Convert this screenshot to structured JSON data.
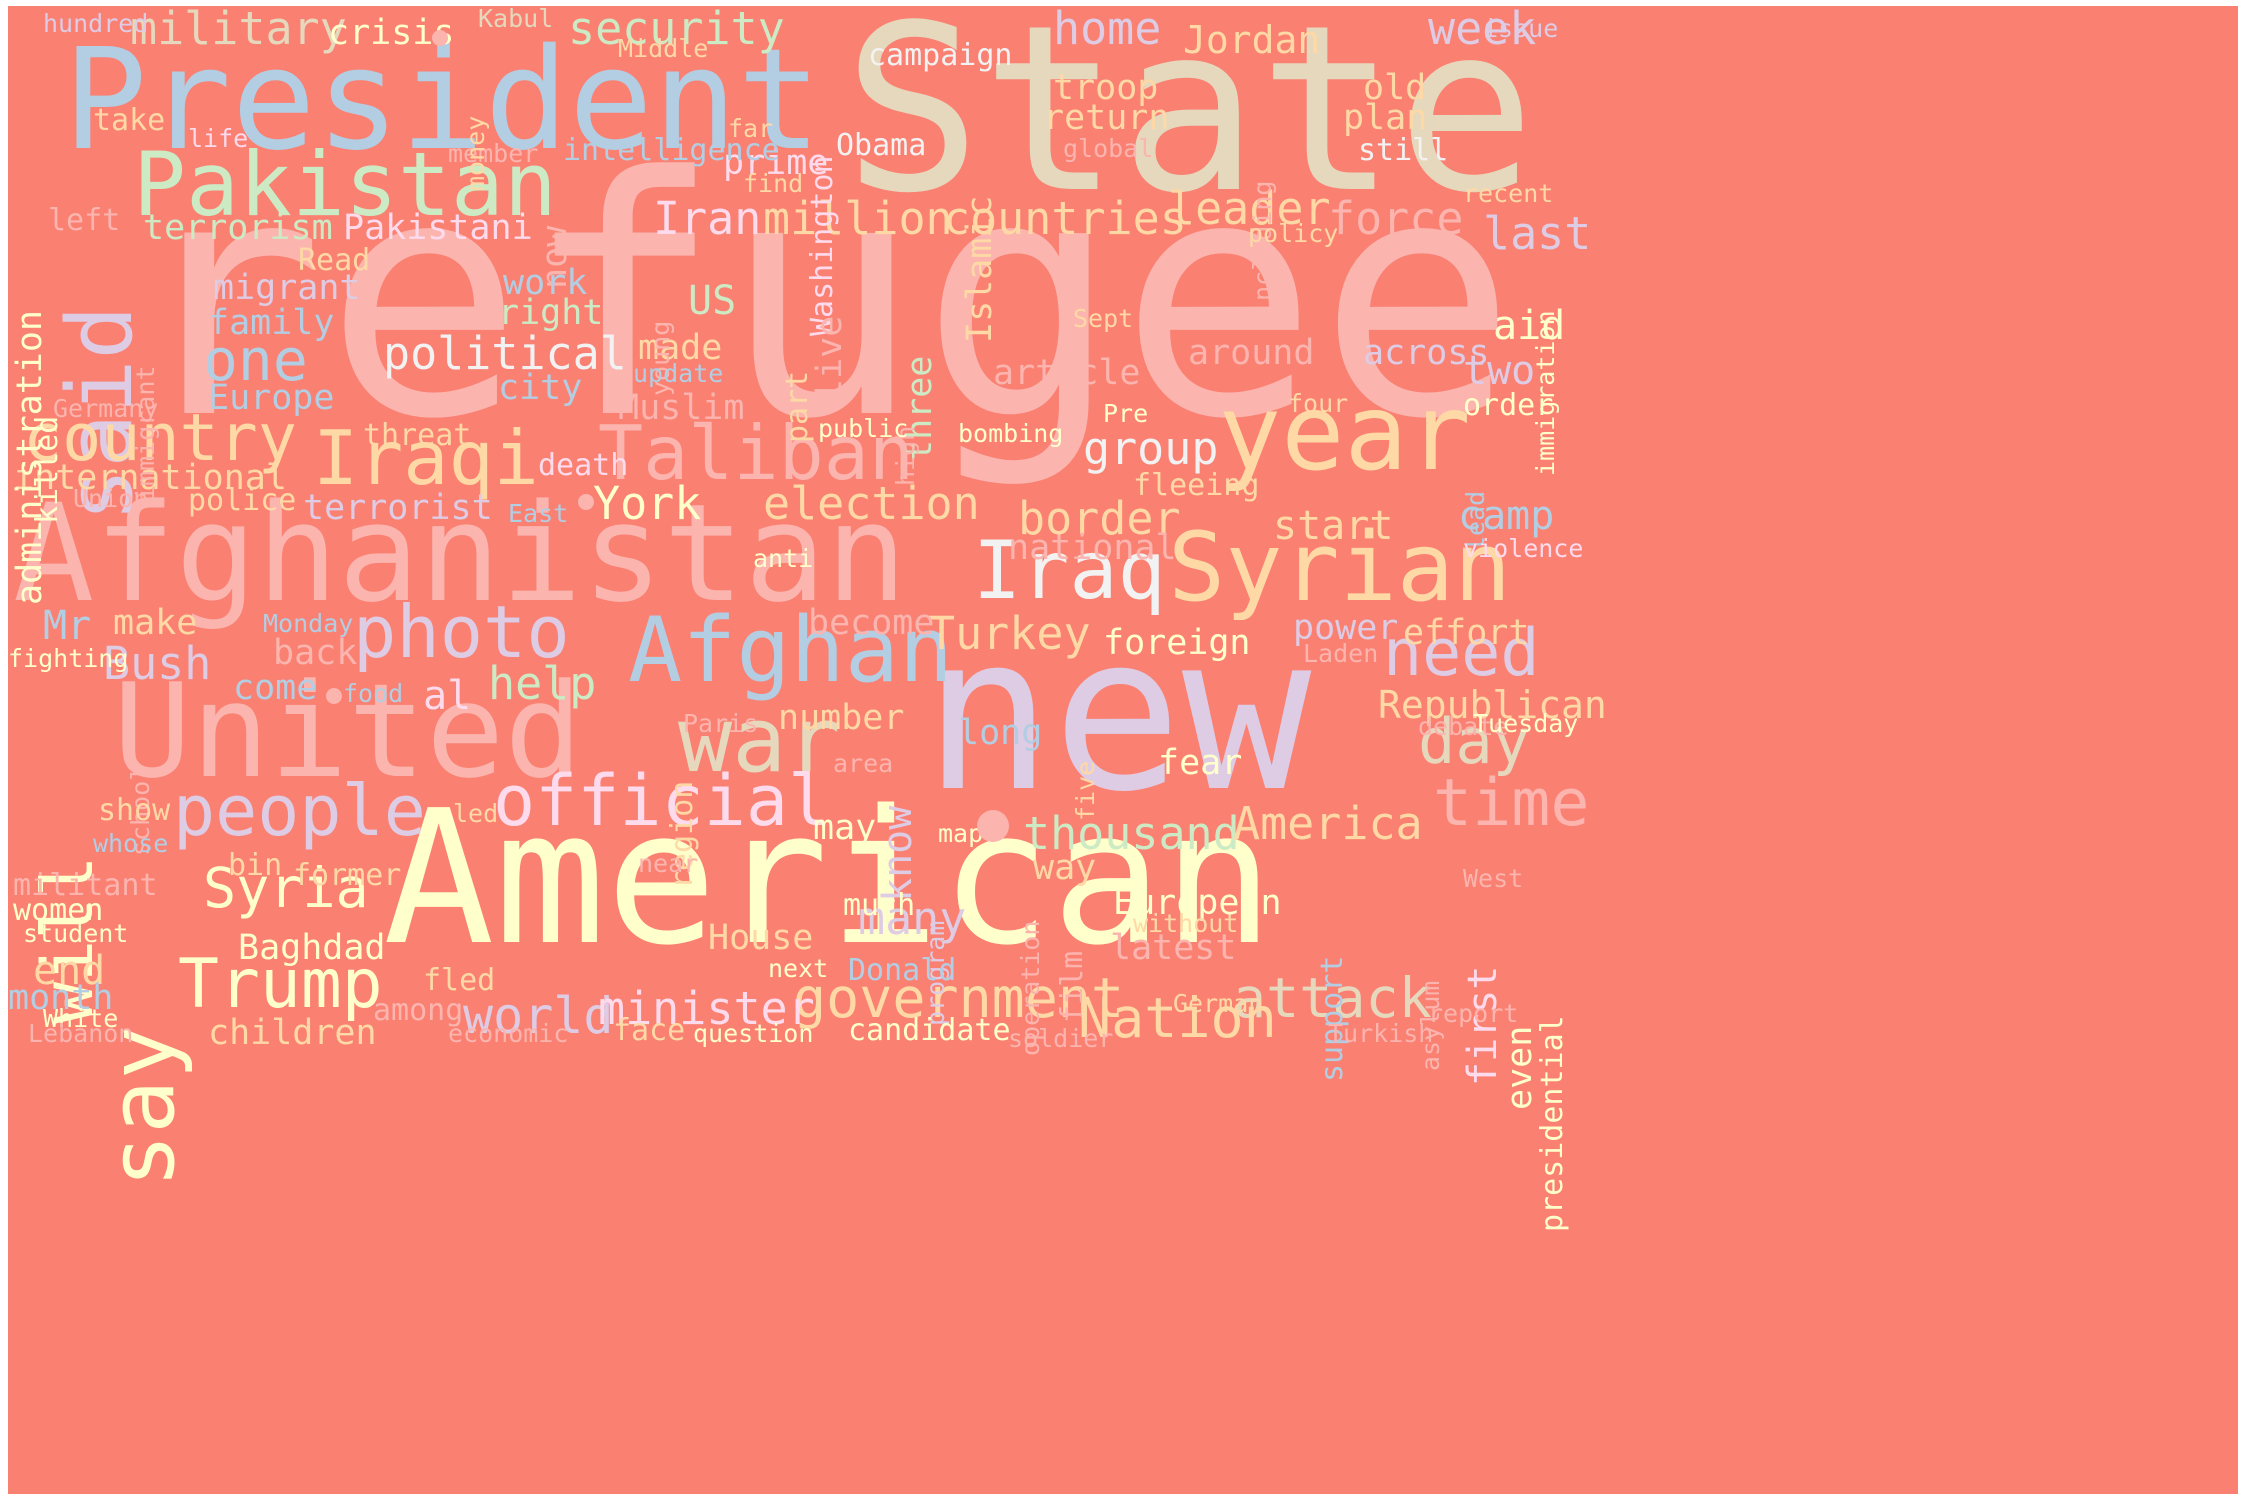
{
  "background_color": "#fa8072",
  "words": [
    {
      "text": "refugee",
      "color": "#fbb4ae"
    },
    {
      "text": "State",
      "color": "#e5d8bd"
    },
    {
      "text": "new",
      "color": "#decbe4"
    },
    {
      "text": "American",
      "color": "#ffffcc"
    },
    {
      "text": "President",
      "color": "#b3cde3"
    },
    {
      "text": "Afghanistan",
      "color": "#fbb4ae"
    },
    {
      "text": "United",
      "color": "#fbb4ae"
    },
    {
      "text": "year",
      "color": "#fed9a6"
    },
    {
      "text": "Syrian",
      "color": "#fed9a6"
    },
    {
      "text": "Pakistan",
      "color": "#ccebc5"
    },
    {
      "text": "said",
      "color": "#decbe4"
    },
    {
      "text": "Afghan",
      "color": "#b3cde3"
    },
    {
      "text": "war",
      "color": "#e5d8bd"
    },
    {
      "text": "say",
      "color": "#ffffcc"
    },
    {
      "text": "Iraqi",
      "color": "#fed9a6"
    },
    {
      "text": "Taliban",
      "color": "#fbb4ae"
    },
    {
      "text": "Iraq",
      "color": "#f2f2f2"
    },
    {
      "text": "photo",
      "color": "#decbe4"
    },
    {
      "text": "official",
      "color": "#fddaec"
    },
    {
      "text": "people",
      "color": "#decbe4"
    },
    {
      "text": "Trump",
      "color": "#ffffcc"
    },
    {
      "text": "will",
      "color": "#ffffcc"
    },
    {
      "text": "country",
      "color": "#fed9a6"
    },
    {
      "text": "government",
      "color": "#fed9a6"
    },
    {
      "text": "time",
      "color": "#fbb4ae"
    },
    {
      "text": "need",
      "color": "#decbe4"
    },
    {
      "text": "day",
      "color": "#e5d8bd"
    },
    {
      "text": "one",
      "color": "#b3cde3"
    },
    {
      "text": "Syria",
      "color": "#ffffcc"
    },
    {
      "text": "attack",
      "color": "#e5d8bd"
    },
    {
      "text": "Nation",
      "color": "#fed9a6"
    },
    {
      "text": "world",
      "color": "#decbe4"
    },
    {
      "text": "minister",
      "color": "#fddaec"
    },
    {
      "text": "thousand",
      "color": "#ccebc5"
    },
    {
      "text": "America",
      "color": "#fed9a6"
    },
    {
      "text": "military",
      "color": "#e5d8bd"
    },
    {
      "text": "security",
      "color": "#ccebc5"
    },
    {
      "text": "million",
      "color": "#fed9a6"
    },
    {
      "text": "Iran",
      "color": "#fddaec"
    },
    {
      "text": "countries",
      "color": "#fed9a6"
    },
    {
      "text": "group",
      "color": "#f2f2f2"
    },
    {
      "text": "border",
      "color": "#fed9a6"
    },
    {
      "text": "election",
      "color": "#fed9a6"
    },
    {
      "text": "political",
      "color": "#f2f2f2"
    },
    {
      "text": "Bush",
      "color": "#decbe4"
    },
    {
      "text": "help",
      "color": "#ccebc5"
    },
    {
      "text": "York",
      "color": "#ffffcc"
    },
    {
      "text": "Turkey",
      "color": "#fed9a6"
    },
    {
      "text": "home",
      "color": "#decbe4"
    },
    {
      "text": "week",
      "color": "#decbe4"
    },
    {
      "text": "Jordan",
      "color": "#fed9a6"
    },
    {
      "text": "leader",
      "color": "#fed9a6"
    },
    {
      "text": "force",
      "color": "#fbb4ae"
    },
    {
      "text": "last",
      "color": "#decbe4"
    },
    {
      "text": "aid",
      "color": "#ffffcc"
    },
    {
      "text": "two",
      "color": "#decbe4"
    },
    {
      "text": "camp",
      "color": "#b3cde3"
    },
    {
      "text": "start",
      "color": "#fed9a6"
    },
    {
      "text": "Republican",
      "color": "#fed9a6"
    },
    {
      "text": "effort",
      "color": "#fed9a6"
    },
    {
      "text": "first",
      "color": "#fddaec"
    },
    {
      "text": "even",
      "color": "#ffffcc"
    },
    {
      "text": "support",
      "color": "#b3cde3"
    },
    {
      "text": "presidential",
      "color": "#ffffcc"
    },
    {
      "text": "many",
      "color": "#decbe4"
    },
    {
      "text": "House",
      "color": "#fed9a6"
    },
    {
      "text": "Baghdad",
      "color": "#ffffcc"
    },
    {
      "text": "end",
      "color": "#fed9a6"
    },
    {
      "text": "month",
      "color": "#b3cde3"
    },
    {
      "text": "children",
      "color": "#fed9a6"
    },
    {
      "text": "know",
      "color": "#decbe4"
    },
    {
      "text": "Mr",
      "color": "#b3cde3"
    },
    {
      "text": "al",
      "color": "#fddaec"
    },
    {
      "text": "now",
      "color": "#fbb4ae"
    },
    {
      "text": "Islamic",
      "color": "#fed9a6"
    },
    {
      "text": "three",
      "color": "#ccebc5"
    },
    {
      "text": "US",
      "color": "#ccebc5"
    },
    {
      "text": "terrorist",
      "color": "#decbe4"
    },
    {
      "text": "international",
      "color": "#fed9a6"
    },
    {
      "text": "Europe",
      "color": "#b3cde3"
    },
    {
      "text": "family",
      "color": "#b3cde3"
    },
    {
      "text": "city",
      "color": "#b3cde3"
    },
    {
      "text": "work",
      "color": "#b3cde3"
    },
    {
      "text": "right",
      "color": "#ccebc5"
    },
    {
      "text": "made",
      "color": "#fed9a6"
    },
    {
      "text": "prime",
      "color": "#fddaec"
    },
    {
      "text": "terrorism",
      "color": "#ccebc5"
    },
    {
      "text": "Pakistani",
      "color": "#fddaec"
    },
    {
      "text": "migrant",
      "color": "#decbe4"
    },
    {
      "text": "administration",
      "color": "#ffffcc"
    },
    {
      "text": "crisis",
      "color": "#ffffcc"
    },
    {
      "text": "hundred",
      "color": "#decbe4"
    },
    {
      "text": "Kabul",
      "color": "#e5d8bd"
    },
    {
      "text": "Middle",
      "color": "#fed9a6"
    },
    {
      "text": "campaign",
      "color": "#f2f2f2"
    },
    {
      "text": "troop",
      "color": "#fed9a6"
    },
    {
      "text": "return",
      "color": "#fed9a6"
    },
    {
      "text": "old",
      "color": "#fed9a6"
    },
    {
      "text": "plan",
      "color": "#fed9a6"
    },
    {
      "text": "still",
      "color": "#f2f2f2"
    },
    {
      "text": "issue",
      "color": "#decbe4"
    },
    {
      "text": "take",
      "color": "#fed9a6"
    },
    {
      "text": "life",
      "color": "#fddaec"
    },
    {
      "text": "member",
      "color": "#fbb4ae"
    },
    {
      "text": "intelligence",
      "color": "#b3cde3"
    },
    {
      "text": "far",
      "color": "#fed9a6"
    },
    {
      "text": "find",
      "color": "#fed9a6"
    },
    {
      "text": "Washington",
      "color": "#fddaec"
    },
    {
      "text": "Obama",
      "color": "#f2f2f2"
    },
    {
      "text": "global",
      "color": "#fbb4ae"
    },
    {
      "text": "including",
      "color": "#fbb4ae"
    },
    {
      "text": "money",
      "color": "#fed9a6"
    },
    {
      "text": "recent",
      "color": "#fed9a6"
    },
    {
      "text": "immigration",
      "color": "#ffffcc"
    },
    {
      "text": "policy",
      "color": "#fed9a6"
    },
    {
      "text": "left",
      "color": "#fbb4ae"
    },
    {
      "text": "Read",
      "color": "#fed9a6"
    },
    {
      "text": "young",
      "color": "#fbb4ae"
    },
    {
      "text": "live",
      "color": "#fbb4ae"
    },
    {
      "text": "Sept",
      "color": "#fed9a6"
    },
    {
      "text": "part",
      "color": "#fed9a6"
    },
    {
      "text": "article",
      "color": "#fbb4ae"
    },
    {
      "text": "around",
      "color": "#fbb4ae"
    },
    {
      "text": "across",
      "color": "#decbe4"
    },
    {
      "text": "order",
      "color": "#ffffcc"
    },
    {
      "text": "update",
      "color": "#b3cde3"
    },
    {
      "text": "high",
      "color": "#fbb4ae"
    },
    {
      "text": "Muslim",
      "color": "#fbb4ae"
    },
    {
      "text": "Pre",
      "color": "#ffffcc"
    },
    {
      "text": "four",
      "color": "#fed9a6"
    },
    {
      "text": "immigrant",
      "color": "#fbb4ae"
    },
    {
      "text": "killed",
      "color": "#ffffcc"
    },
    {
      "text": "Germany",
      "color": "#fbb4ae"
    },
    {
      "text": "threat",
      "color": "#fed9a6"
    },
    {
      "text": "public",
      "color": "#ffffcc"
    },
    {
      "text": "bombing",
      "color": "#ffffcc"
    },
    {
      "text": "lead",
      "color": "#b3cde3"
    },
    {
      "text": "death",
      "color": "#fddaec"
    },
    {
      "text": "Union",
      "color": "#fbb4ae"
    },
    {
      "text": "police",
      "color": "#fed9a6"
    },
    {
      "text": "East",
      "color": "#b3cde3"
    },
    {
      "text": "fleeing",
      "color": "#fed9a6"
    },
    {
      "text": "national",
      "color": "#fbb4ae"
    },
    {
      "text": "violence",
      "color": "#fddaec"
    },
    {
      "text": "anti",
      "color": "#ffffcc"
    },
    {
      "text": "make",
      "color": "#fed9a6"
    },
    {
      "text": "Monday",
      "color": "#b3cde3"
    },
    {
      "text": "become",
      "color": "#fbb4ae"
    },
    {
      "text": "foreign",
      "color": "#ffffcc"
    },
    {
      "text": "power",
      "color": "#decbe4"
    },
    {
      "text": "fighting",
      "color": "#ffffcc"
    },
    {
      "text": "back",
      "color": "#fbb4ae"
    },
    {
      "text": "Laden",
      "color": "#fbb4ae"
    },
    {
      "text": "come",
      "color": "#b3cde3"
    },
    {
      "text": "food",
      "color": "#b3cde3"
    },
    {
      "text": "school",
      "color": "#fbb4ae"
    },
    {
      "text": "region",
      "color": "#fed9a6"
    },
    {
      "text": "Paris",
      "color": "#fbb4ae"
    },
    {
      "text": "number",
      "color": "#fed9a6"
    },
    {
      "text": "long",
      "color": "#b3cde3"
    },
    {
      "text": "debate",
      "color": "#fbb4ae"
    },
    {
      "text": "Tuesday",
      "color": "#ffffcc"
    },
    {
      "text": "five",
      "color": "#fed9a6"
    },
    {
      "text": "fear",
      "color": "#ffffcc"
    },
    {
      "text": "area",
      "color": "#fbb4ae"
    },
    {
      "text": "show",
      "color": "#fed9a6"
    },
    {
      "text": "led",
      "color": "#fed9a6"
    },
    {
      "text": "whose",
      "color": "#b3cde3"
    },
    {
      "text": "may",
      "color": "#ffffcc"
    },
    {
      "text": "map",
      "color": "#ffffcc"
    },
    {
      "text": "operation",
      "color": "#fbb4ae"
    },
    {
      "text": "way",
      "color": "#fed9a6"
    },
    {
      "text": "bin",
      "color": "#fed9a6"
    },
    {
      "text": "near",
      "color": "#fbb4ae"
    },
    {
      "text": "program",
      "color": "#decbe4"
    },
    {
      "text": "former",
      "color": "#fed9a6"
    },
    {
      "text": "militant",
      "color": "#fbb4ae"
    },
    {
      "text": "West",
      "color": "#fbb4ae"
    },
    {
      "text": "women",
      "color": "#ffffcc"
    },
    {
      "text": "much",
      "color": "#ffffcc"
    },
    {
      "text": "film",
      "color": "#fbb4ae"
    },
    {
      "text": "European",
      "color": "#ffffcc"
    },
    {
      "text": "without",
      "color": "#fed9a6"
    },
    {
      "text": "asylum",
      "color": "#fbb4ae"
    },
    {
      "text": "student",
      "color": "#ffffcc"
    },
    {
      "text": "latest",
      "color": "#fbb4ae"
    },
    {
      "text": "next",
      "color": "#ffffcc"
    },
    {
      "text": "Donald",
      "color": "#b3cde3"
    },
    {
      "text": "fled",
      "color": "#fed9a6"
    },
    {
      "text": "among",
      "color": "#fbb4ae"
    },
    {
      "text": "German",
      "color": "#fed9a6"
    },
    {
      "text": "White",
      "color": "#ffffcc"
    },
    {
      "text": "report",
      "color": "#fbb4ae"
    },
    {
      "text": "Lebanon",
      "color": "#fbb4ae"
    },
    {
      "text": "economic",
      "color": "#fbb4ae"
    },
    {
      "text": "face",
      "color": "#fed9a6"
    },
    {
      "text": "question",
      "color": "#ffffcc"
    },
    {
      "text": "candidate",
      "color": "#ffffcc"
    },
    {
      "text": "soldier",
      "color": "#fbb4ae"
    },
    {
      "text": "Turkish",
      "color": "#fbb4ae"
    }
  ]
}
